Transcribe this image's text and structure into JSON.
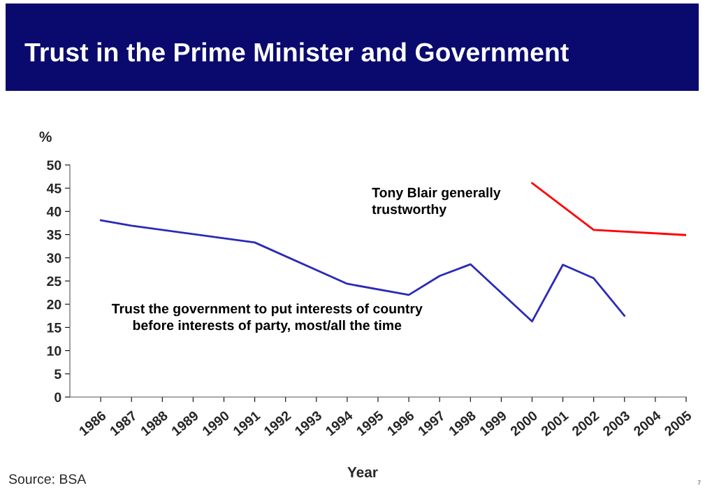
{
  "chart_data": {
    "type": "line",
    "title": "Trust in the Prime Minister and Government",
    "xlabel": "Year",
    "ylabel": "%",
    "series": [
      {
        "name": "Trust the government to put interests of country before interests of party, most/all the time",
        "color": "#2a2ab8",
        "x": [
          1986,
          1987,
          1991,
          1994,
          1996,
          1997,
          1998,
          2000,
          2001,
          2002,
          2003
        ],
        "values": [
          38.1,
          36.9,
          33.3,
          24.4,
          22.0,
          26.1,
          28.6,
          16.3,
          28.5,
          25.6,
          17.5
        ]
      },
      {
        "name": "Tony Blair generally trustworthy",
        "color": "#ff0000",
        "x": [
          2000,
          2002,
          2005
        ],
        "values": [
          46.1,
          36.0,
          34.9
        ]
      }
    ],
    "xlim": [
      1985,
      2005
    ],
    "xticks": [
      1986,
      1987,
      1988,
      1989,
      1990,
      1991,
      1992,
      1993,
      1994,
      1995,
      1996,
      1997,
      1998,
      1999,
      2000,
      2001,
      2002,
      2003,
      2004,
      2005
    ],
    "ylim": [
      0,
      50
    ],
    "yticks": [
      0,
      5,
      10,
      15,
      20,
      25,
      30,
      35,
      40,
      45,
      50
    ],
    "grid": false,
    "legend": false,
    "marker": "none",
    "line_style": "solid",
    "annotations": [
      "Source: BSA",
      "7"
    ]
  }
}
